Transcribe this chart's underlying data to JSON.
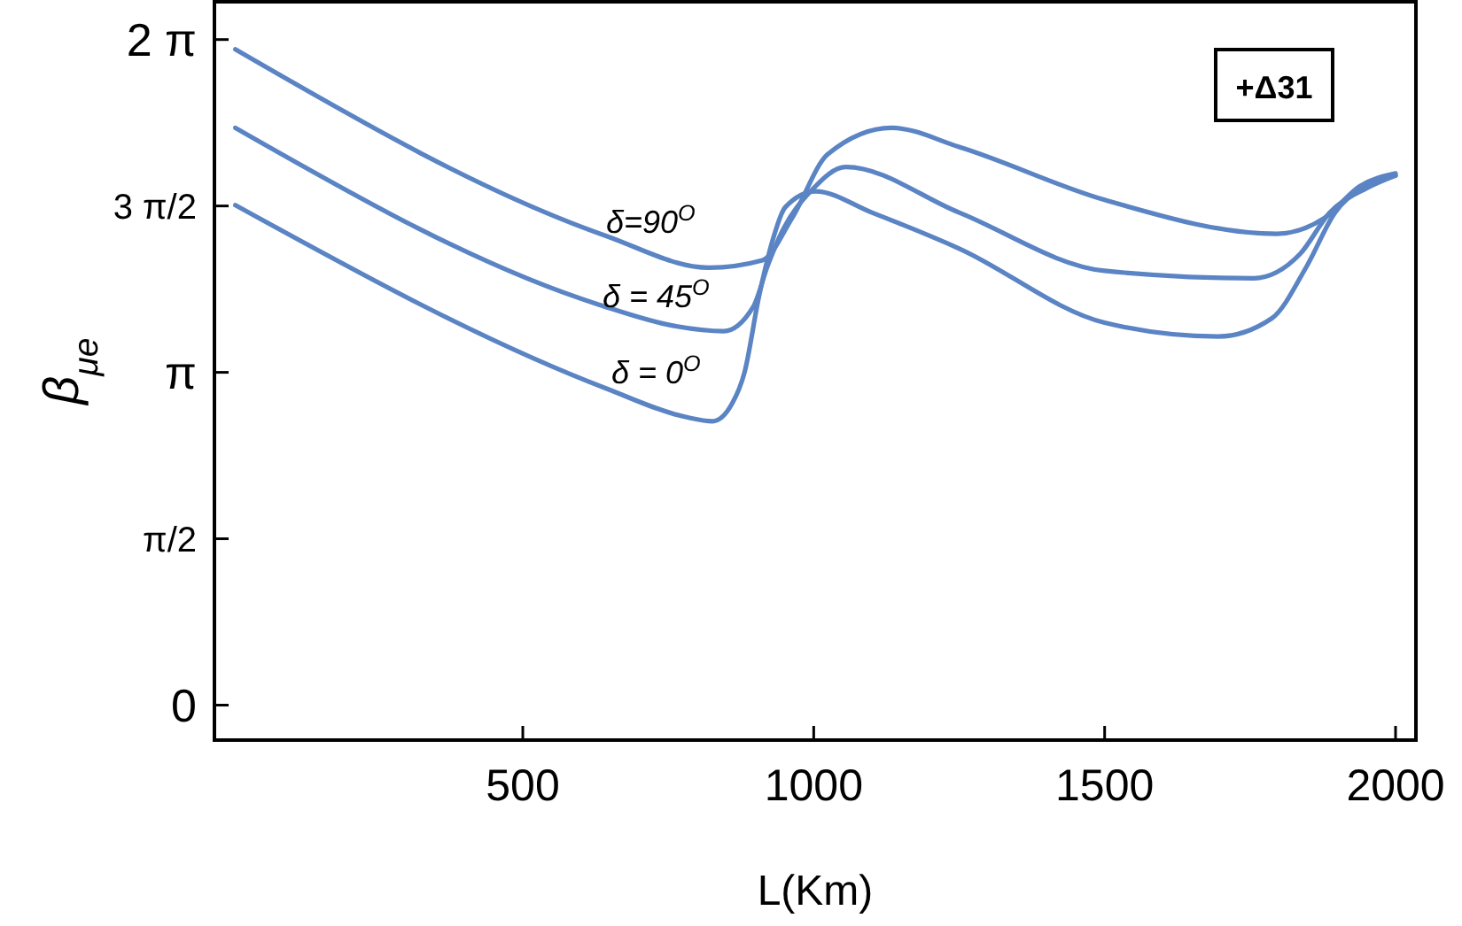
{
  "chart_data": {
    "type": "line",
    "xlabel": "L(Km)",
    "ylabel": "β$_{μe}$",
    "xlim": [
      -30,
      2035
    ],
    "ylim": [
      -0.33,
      6.64
    ],
    "xticks": [
      500,
      1000,
      1500,
      2000
    ],
    "yticks": [
      {
        "value": 0,
        "label": "0"
      },
      {
        "value": 1.5708,
        "label": "π/2"
      },
      {
        "value": 3.1416,
        "label": "π"
      },
      {
        "value": 4.7124,
        "label": "3 π/2"
      },
      {
        "value": 6.2832,
        "label": "2 π"
      }
    ],
    "grid": false,
    "series": [
      {
        "color": "#5b84c4",
        "x": [
          6,
          643,
          780,
          826,
          860,
          881,
          906,
          930,
          951,
          1003,
          1100,
          1250,
          1500,
          1695,
          1787,
          1848,
          1896,
          1939,
          2000
        ],
        "values": [
          4.72,
          2.99,
          2.72,
          2.68,
          2.85,
          3.14,
          3.86,
          4.4,
          4.7,
          4.85,
          4.65,
          4.31,
          3.61,
          3.48,
          3.65,
          4.15,
          4.65,
          4.87,
          5.0
        ]
      },
      {
        "color": "#5b84c4",
        "x": [
          6,
          631,
          760,
          845,
          896,
          921,
          942,
          998,
          1055,
          1250,
          1500,
          1756,
          1836,
          1887,
          1950,
          2000
        ],
        "values": [
          5.45,
          3.78,
          3.58,
          3.53,
          3.76,
          4.15,
          4.43,
          4.87,
          5.08,
          4.65,
          4.1,
          4.03,
          4.26,
          4.65,
          4.88,
          5.0
        ]
      },
      {
        "color": "#5b84c4",
        "x": [
          6,
          643,
          820,
          912,
          963,
          1024,
          1134,
          1250,
          1500,
          1796,
          1878,
          1939,
          2000
        ],
        "values": [
          6.19,
          4.43,
          4.13,
          4.2,
          4.6,
          5.2,
          5.45,
          5.27,
          4.77,
          4.45,
          4.6,
          4.9,
          5.02
        ]
      }
    ],
    "annotations": [
      "δ=90$^{O}$",
      "δ = 45$^{O}$",
      "δ = 0$^{O}$",
      "+Δ31"
    ]
  }
}
